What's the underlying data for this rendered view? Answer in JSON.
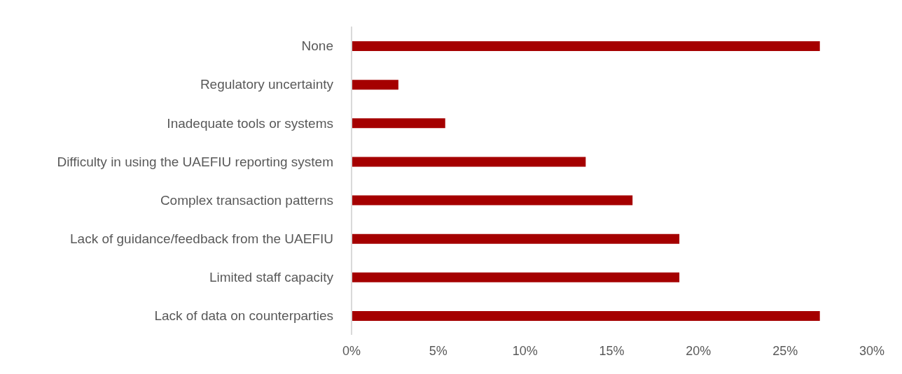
{
  "chart_data": {
    "type": "bar",
    "orientation": "horizontal",
    "categories": [
      "None",
      "Regulatory uncertainty",
      "Inadequate tools or systems",
      "Difficulty in using the UAEFIU reporting system",
      "Complex transaction patterns",
      "Lack of guidance/feedback from the UAEFIU",
      "Limited staff capacity",
      "Lack of data on counterparties"
    ],
    "values": [
      27,
      2.7,
      5.4,
      13.5,
      16.2,
      18.9,
      18.9,
      27
    ],
    "color": "#a50000",
    "xlim": [
      0,
      30
    ],
    "xticks": [
      {
        "value": 0,
        "label": "0%"
      },
      {
        "value": 5,
        "label": "5%"
      },
      {
        "value": 10,
        "label": "10%"
      },
      {
        "value": 15,
        "label": "15%"
      },
      {
        "value": 20,
        "label": "20%"
      },
      {
        "value": 25,
        "label": "25%"
      },
      {
        "value": 30,
        "label": "30%"
      }
    ],
    "grid": false,
    "legend": false
  }
}
